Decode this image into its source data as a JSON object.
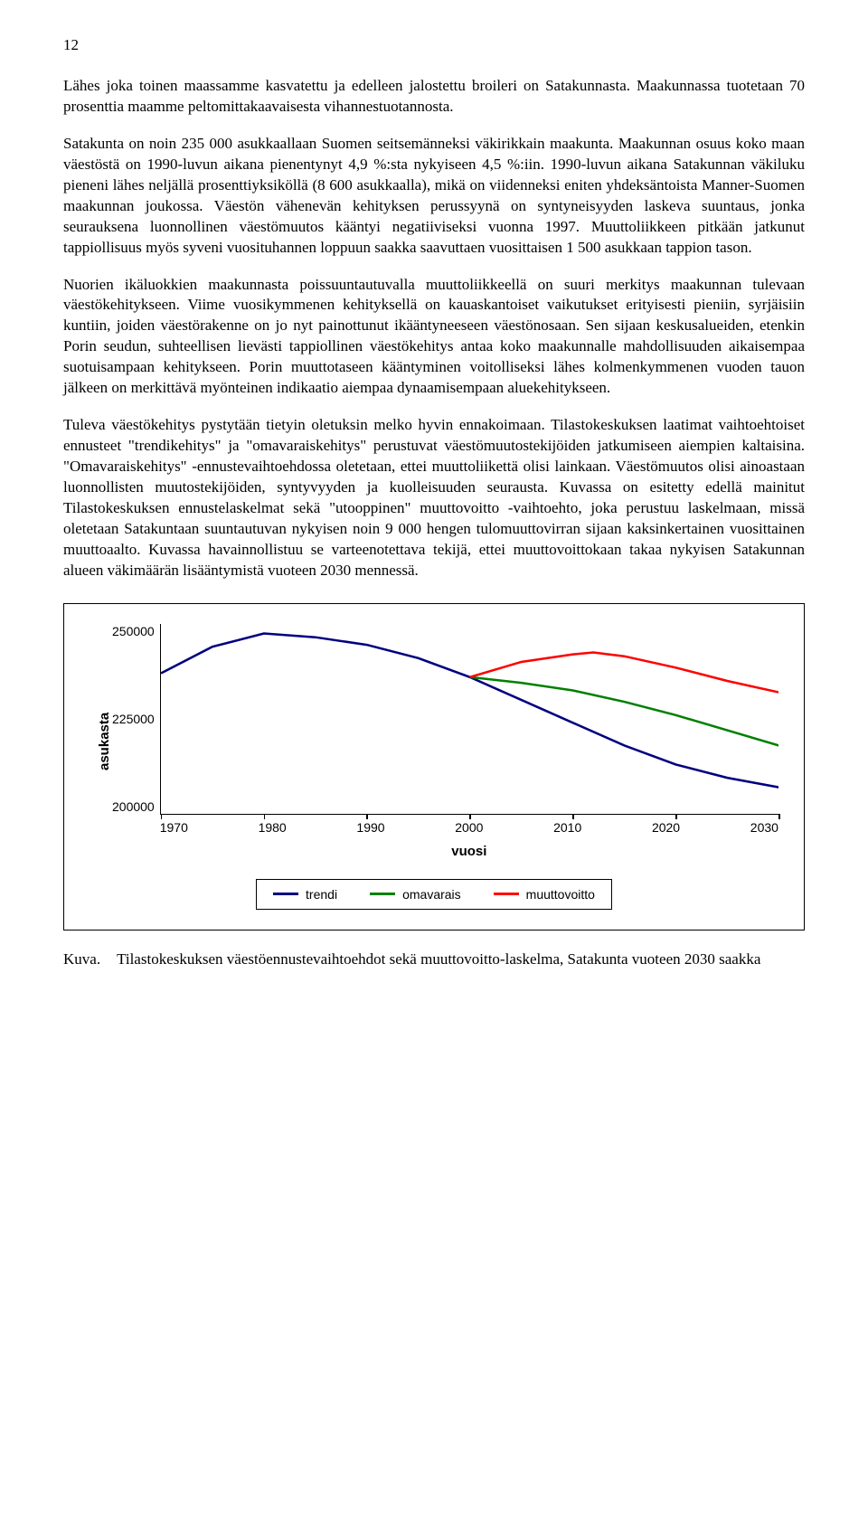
{
  "page_number": "12",
  "paragraphs": [
    "Lähes joka toinen maassamme kasvatettu ja edelleen jalostettu broileri on Satakunnasta. Maakunnassa tuotetaan 70 prosenttia maamme peltomittakaavaisesta vihannestuotannosta.",
    "Satakunta on noin 235 000 asukkaallaan Suomen seitsemänneksi väkirikkain maakunta. Maakunnan osuus koko maan väestöstä on 1990-luvun aikana pienentynyt 4,9 %:sta nykyiseen 4,5 %:iin. 1990-luvun aikana Satakunnan väkiluku pieneni lähes neljällä prosenttiyksiköllä (8 600 asukkaalla), mikä on viidenneksi eniten yhdeksäntoista Manner-Suomen maakunnan joukossa. Väestön vähenevän kehityksen perussyynä on syntyneisyyden laskeva suuntaus, jonka seurauksena luonnollinen väestömuutos kääntyi negatiiviseksi vuonna 1997. Muuttoliikkeen pitkään jatkunut tappiollisuus myös syveni vuosituhannen loppuun saakka saavuttaen vuosittaisen 1 500 asukkaan tappion tason.",
    "Nuorien ikäluokkien maakunnasta poissuuntautuvalla muuttoliikkeellä on suuri merkitys maakunnan tulevaan väestökehitykseen. Viime vuosikymmenen kehityksellä on kauaskantoiset vaikutukset erityisesti pieniin, syrjäisiin kuntiin, joiden väestörakenne on jo nyt painottunut ikääntyneeseen väestönosaan. Sen sijaan keskusalueiden, etenkin Porin seudun, suhteellisen lievästi tappiollinen väestökehitys antaa koko maakunnalle mahdollisuuden aikaisempaa suotuisampaan kehitykseen. Porin muuttotaseen kääntyminen voitolliseksi lähes kolmenkymmenen vuoden tauon jälkeen on merkittävä myönteinen indikaatio aiempaa dynaamisempaan aluekehitykseen.",
    "Tuleva väestökehitys pystytään tietyin oletuksin melko hyvin ennakoimaan. Tilastokeskuksen laatimat vaihtoehtoiset ennusteet \"trendikehitys\" ja \"omavaraiskehitys\" perustuvat väestömuutostekijöiden jatkumiseen aiempien kaltaisina. \"Omavaraiskehitys\" -ennustevaihtoehdossa oletetaan, ettei muuttoliikettä olisi lainkaan. Väestömuutos olisi ainoastaan luonnollisten muutostekijöiden, syntyvyyden ja kuolleisuuden seurausta. Kuvassa on esitetty edellä mainitut Tilastokeskuksen ennustelaskelmat sekä \"utooppinen\" muuttovoitto -vaihtoehto, joka perustuu laskelmaan, missä oletetaan Satakuntaan suuntautuvan nykyisen noin 9 000 hengen tulomuuttovirran sijaan kaksinkertainen vuosittainen muuttoaalto. Kuvassa havainnollistuu se varteenotettava tekijä, ettei muuttovoittokaan takaa nykyisen Satakunnan alueen väkimäärän lisääntymistä vuoteen 2030 mennessä."
  ],
  "chart": {
    "type": "line",
    "y_label": "asukasta",
    "x_label": "vuosi",
    "y_ticks": [
      "250000",
      "225000",
      "200000"
    ],
    "x_ticks": [
      "1970",
      "1980",
      "1990",
      "2000",
      "2010",
      "2020",
      "2030"
    ],
    "ylim": [
      200000,
      250000
    ],
    "xlim": [
      1970,
      2030
    ],
    "background_color": "#ffffff",
    "axis_color": "#000000",
    "line_width": 2.5,
    "series": [
      {
        "name": "trendi",
        "label": "trendi",
        "color": "#000080",
        "points": [
          [
            1970,
            237000
          ],
          [
            1975,
            244000
          ],
          [
            1980,
            247500
          ],
          [
            1985,
            246500
          ],
          [
            1990,
            244500
          ],
          [
            1995,
            241000
          ],
          [
            2000,
            236000
          ],
          [
            2005,
            230000
          ],
          [
            2010,
            224000
          ],
          [
            2015,
            218000
          ],
          [
            2020,
            213000
          ],
          [
            2025,
            209500
          ],
          [
            2030,
            207000
          ]
        ]
      },
      {
        "name": "omavarais",
        "label": "omavarais",
        "color": "#008000",
        "points": [
          [
            2000,
            236000
          ],
          [
            2005,
            234500
          ],
          [
            2010,
            232500
          ],
          [
            2015,
            229500
          ],
          [
            2020,
            226000
          ],
          [
            2025,
            222000
          ],
          [
            2030,
            218000
          ]
        ]
      },
      {
        "name": "muuttovoitto",
        "label": "muuttovoitto",
        "color": "#ff0000",
        "points": [
          [
            2000,
            236000
          ],
          [
            2005,
            240000
          ],
          [
            2010,
            242000
          ],
          [
            2012,
            242500
          ],
          [
            2015,
            241500
          ],
          [
            2020,
            238500
          ],
          [
            2025,
            235000
          ],
          [
            2030,
            232000
          ]
        ]
      }
    ]
  },
  "caption_label": "Kuva.",
  "caption_text": "Tilastokeskuksen väestöennustevaihtoehdot sekä muuttovoitto-laskelma, Satakunta vuoteen 2030 saakka"
}
